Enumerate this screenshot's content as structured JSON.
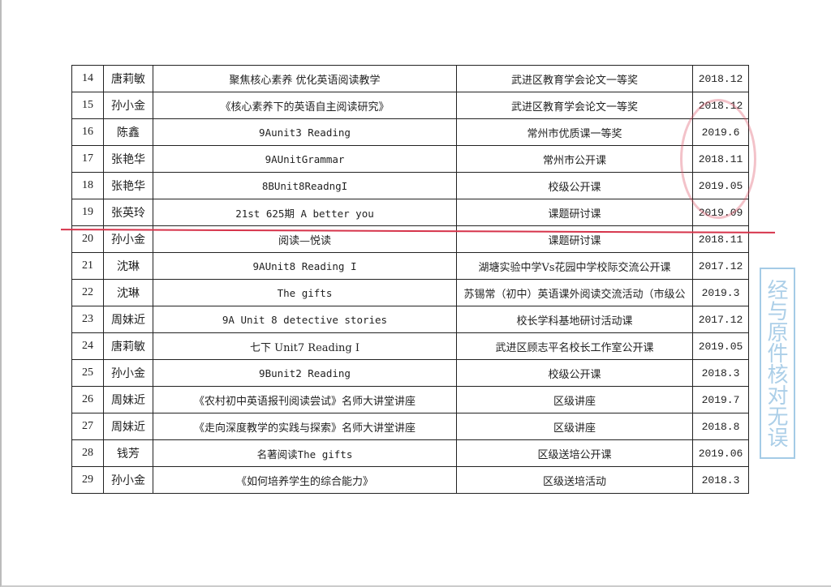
{
  "rows": [
    {
      "no": "14",
      "name": "唐莉敏",
      "title": "聚焦核心素养 优化英语阅读教学",
      "award": "武进区教育学会论文一等奖",
      "date": "2018.12"
    },
    {
      "no": "15",
      "name": "孙小金",
      "title": "《核心素养下的英语自主阅读研究》",
      "award": "武进区教育学会论文一等奖",
      "date": "2018.12"
    },
    {
      "no": "16",
      "name": "陈鑫",
      "title": "9Aunit3 Reading",
      "award": "常州市优质课一等奖",
      "date": "2019.6"
    },
    {
      "no": "17",
      "name": "张艳华",
      "title": "9AUnitGrammar",
      "award": "常州市公开课",
      "date": "2018.11"
    },
    {
      "no": "18",
      "name": "张艳华",
      "title": "8BUnit8ReadngI",
      "award": "校级公开课",
      "date": "2019.05"
    },
    {
      "no": "19",
      "name": "张英玲",
      "title": "21st 625期 A better you",
      "award": "课题研讨课",
      "date": "2019.09"
    },
    {
      "no": "20",
      "name": "孙小金",
      "title": "阅读—悦读",
      "award": "课题研讨课",
      "date": "2018.11"
    },
    {
      "no": "21",
      "name": "沈琳",
      "title": "9AUnit8 Reading I",
      "award": "湖塘实验中学Vs花园中学校际交流公开课",
      "date": "2017.12"
    },
    {
      "no": "22",
      "name": "沈琳",
      "title": "The gifts",
      "award": "苏锡常（初中）英语课外阅读交流活动（市级公",
      "date": "2019.3"
    },
    {
      "no": "23",
      "name": "周妹近",
      "title": "9A Unit 8 detective stories",
      "award": "校长学科基地研讨活动课",
      "date": "2017.12"
    },
    {
      "no": "24",
      "name": "唐莉敏",
      "title": "七下 Unit7 Reading I",
      "award": "武进区顾志平名校长工作室公开课",
      "date": "2019.05"
    },
    {
      "no": "25",
      "name": "孙小金",
      "title": "9Bunit2 Reading",
      "award": "校级公开课",
      "date": "2018.3"
    },
    {
      "no": "26",
      "name": "周妹近",
      "title": "《农村初中英语报刊阅读尝试》名师大讲堂讲座",
      "award": "区级讲座",
      "date": "2019.7"
    },
    {
      "no": "27",
      "name": "周妹近",
      "title": "《走向深度教学的实践与探索》名师大讲堂讲座",
      "award": "区级讲座",
      "date": "2018.8"
    },
    {
      "no": "28",
      "name": "钱芳",
      "title": "名著阅读The gifts",
      "award": "区级送培公开课",
      "date": "2019.06"
    },
    {
      "no": "29",
      "name": "孙小金",
      "title": "《如何培养学生的综合能力》",
      "award": "区级送培活动",
      "date": "2018.3"
    }
  ],
  "stamps": {
    "blue_text": "经与原件核对无误",
    "seal_color": "#dc5064",
    "line_color": "#d6334a",
    "blue_color": "#5aa0d2"
  }
}
